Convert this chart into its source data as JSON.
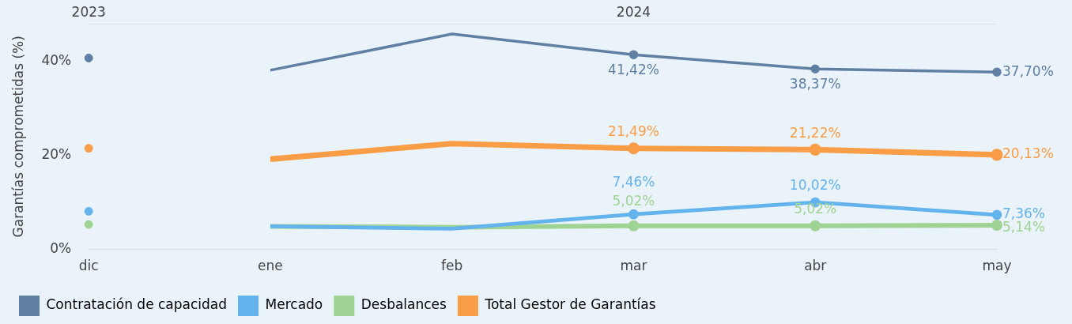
{
  "chart_data": {
    "type": "line",
    "ylabel": "Garantías comprometidas (%)",
    "categories": [
      "dic",
      "ene",
      "feb",
      "mar",
      "abr",
      "may"
    ],
    "ylim": [
      0,
      48
    ],
    "yticks": [
      {
        "value": 0,
        "label": "0%"
      },
      {
        "value": 20,
        "label": "20%"
      },
      {
        "value": 40,
        "label": "40%"
      }
    ],
    "grid": false,
    "legend": "bottom",
    "marker": "circle",
    "line_style": "solid",
    "annotations": [
      "2023",
      "2024"
    ],
    "series": [
      {
        "name": "Contratación de capacidad",
        "color": "#5f7fa3",
        "x": [
          "ene",
          "feb",
          "mar",
          "abr",
          "may"
        ],
        "values": [
          38.1,
          45.8,
          41.42,
          38.37,
          37.7
        ],
        "value_labels": [
          null,
          null,
          "41,42%",
          "38,37%",
          "37,70%"
        ]
      },
      {
        "name": "Mercado",
        "color": "#63b3ec",
        "x": [
          "ene",
          "feb",
          "mar",
          "abr",
          "may"
        ],
        "values": [
          4.9,
          4.4,
          7.46,
          10.02,
          7.36
        ],
        "value_labels": [
          null,
          null,
          "7,46%",
          "10,02%",
          "7,36%"
        ]
      },
      {
        "name": "Desbalances",
        "color": "#9fd393",
        "x": [
          "ene",
          "feb",
          "mar",
          "abr",
          "may"
        ],
        "values": [
          4.9,
          4.7,
          5.02,
          5.02,
          5.14
        ],
        "value_labels": [
          null,
          null,
          "5,02%",
          "5,02%",
          "5,14%"
        ]
      },
      {
        "name": "Total Gestor de Garantías",
        "color": "#f99d46",
        "x": [
          "ene",
          "feb",
          "mar",
          "abr",
          "may"
        ],
        "values": [
          19.2,
          22.5,
          21.49,
          21.22,
          20.13
        ],
        "value_labels": [
          null,
          null,
          "21,49%",
          "21,22%",
          "20,13%"
        ]
      },
      {
        "type": "scatter",
        "color": "#5f7fa3",
        "x": [
          "dic"
        ],
        "values": [
          40.7
        ]
      },
      {
        "type": "scatter",
        "color": "#63b3ec",
        "x": [
          "dic"
        ],
        "values": [
          8.1
        ]
      },
      {
        "type": "scatter",
        "color": "#9fd393",
        "x": [
          "dic"
        ],
        "values": [
          5.3
        ]
      },
      {
        "type": "scatter",
        "color": "#f99d46",
        "x": [
          "dic"
        ],
        "values": [
          21.5
        ]
      }
    ]
  }
}
